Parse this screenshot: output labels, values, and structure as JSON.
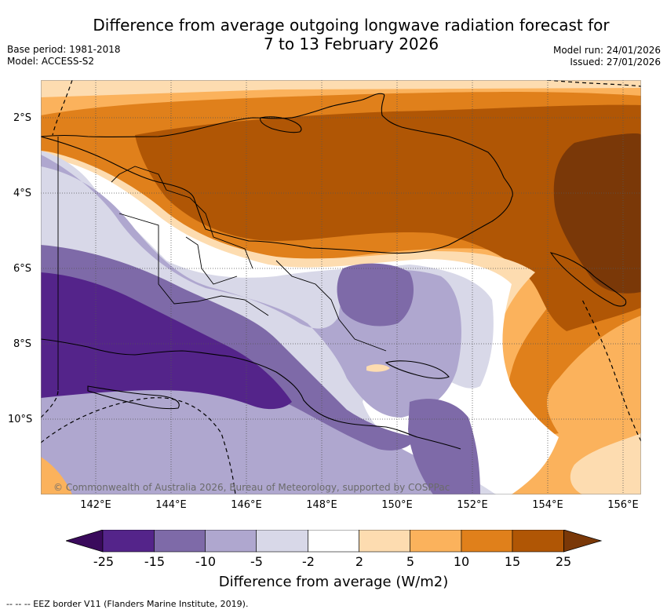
{
  "title_line1": "Difference from average outgoing longwave radiation forecast for",
  "title_line2": "7 to 13 February 2026",
  "base_period": "Base period: 1981-2018",
  "model": "Model: ACCESS-S2",
  "model_run": "Model run: 24/01/2026",
  "issued": "Issued: 27/01/2026",
  "lat_labels": [
    "2°S",
    "4°S",
    "6°S",
    "8°S",
    "10°S"
  ],
  "lon_labels": [
    "142°E",
    "144°E",
    "146°E",
    "148°E",
    "150°E",
    "152°E",
    "154°E",
    "156°E"
  ],
  "copyright": "© Commonwealth of Australia 2026, Bureau of Meteorology, supported by COSPPac",
  "colorbar": {
    "ticks": [
      "-25",
      "-15",
      "-10",
      "-5",
      "-2",
      "2",
      "5",
      "10",
      "15",
      "25"
    ],
    "colors": {
      "below_min": "#3a0a5c",
      "neg25_neg15": "#54248a",
      "neg15_neg10": "#7e6aa8",
      "neg10_neg5": "#afa7cf",
      "neg5_neg2": "#d8d8e8",
      "neg2_2": "#ffffff",
      "2_5": "#fddcb0",
      "5_10": "#fbb25c",
      "10_15": "#e0801b",
      "15_25": "#b05605",
      "above_max": "#7a3808"
    },
    "label": "Difference from average (W/m2)"
  },
  "footnote": "--  --  -- EEZ border V11 (Flanders Marine Institute, 2019)."
}
